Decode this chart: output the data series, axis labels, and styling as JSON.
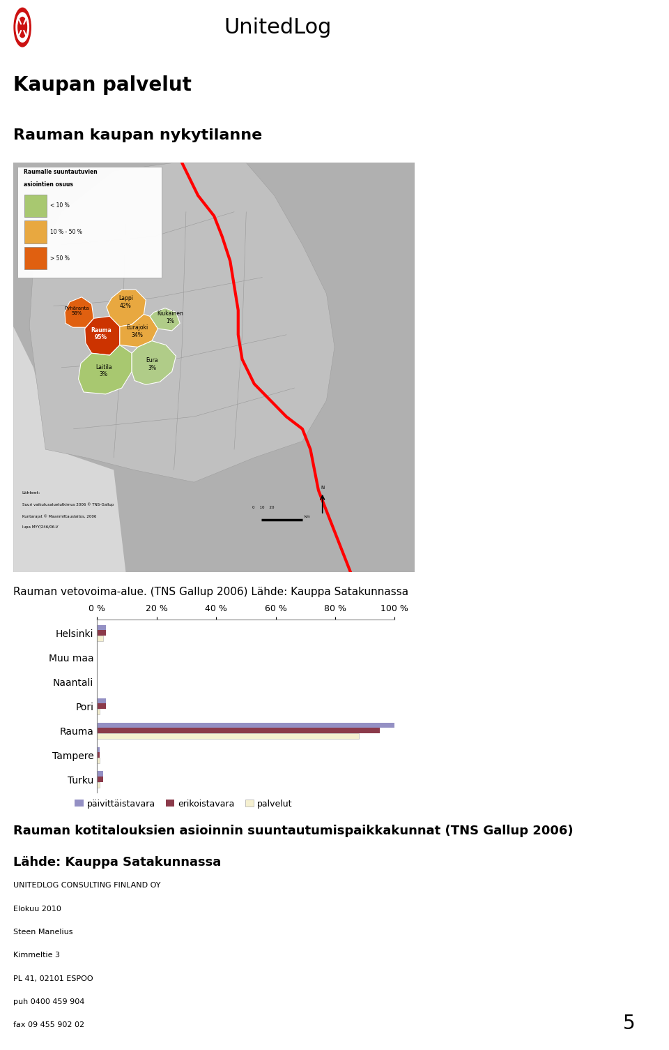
{
  "title1": "Kaupan palvelut",
  "title2": "Rauman kaupan nykytilanne",
  "caption1": "Rauman vetovoima-alue. (TNS Gallup 2006) Lähde: Kauppa Satakunnassa",
  "caption2": "Rauman kotitalouksien asioinnin suuntautumispaikkakunnat (TNS Gallup 2006)",
  "caption3": "Lähde: Kauppa Satakunnassa",
  "footer_line1": "UNITEDLOG CONSULTING FINLAND OY",
  "footer_line2": "Elokuu 2010",
  "footer_line3": "Steen Manelius",
  "footer_line4": "Kimmeltie 3",
  "footer_line5": "PL 41, 02101 ESPOO",
  "footer_line6": "puh 0400 459 904",
  "footer_line7": "fax 09 455 902 02",
  "page_number": "5",
  "categories": [
    "Helsinki",
    "Muu maa",
    "Naantali",
    "Pori",
    "Rauma",
    "Tampere",
    "Turku"
  ],
  "paivittaistavara": [
    3,
    0,
    0,
    3,
    100,
    1,
    2
  ],
  "erikoistavara": [
    3,
    0,
    0,
    3,
    95,
    1,
    2
  ],
  "palvelut": [
    2,
    0,
    0,
    1,
    88,
    1,
    1
  ],
  "color_paivittaistavara": "#9490C4",
  "color_erikoistavara": "#8B3A4A",
  "color_palvelut": "#F5F0D0",
  "xlim": [
    0,
    100
  ],
  "xticks": [
    0,
    20,
    40,
    60,
    80,
    100
  ],
  "xticklabels": [
    "0 %",
    "20 %",
    "40 %",
    "60 %",
    "80 %",
    "100 %"
  ],
  "legend_labels": [
    "päivittäistavara",
    "erikoistavara",
    "palvelut"
  ],
  "background_color": "#ffffff",
  "chart_border_color": "#999999",
  "map_bg_color": "#b8b8b8",
  "region_colors": {
    "rauma": "#cc3300",
    "pyharanta": "#e06010",
    "lappi": "#e8a840",
    "eurajoki": "#e8a840",
    "laitila": "#a8c870",
    "eura": "#b0cc88",
    "kiukainen": "#b0cc88"
  }
}
